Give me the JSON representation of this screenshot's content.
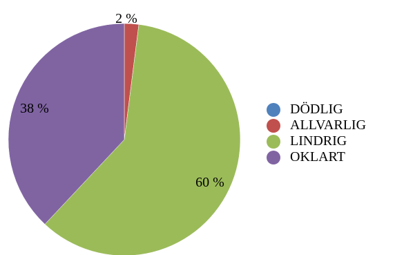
{
  "chart_data": {
    "type": "pie",
    "categories": [
      "DÖDLIG",
      "ALLVARLIG",
      "LINDRIG",
      "OKLART"
    ],
    "values": [
      0,
      2,
      60,
      38
    ],
    "value_labels": [
      "",
      "2 %",
      "60 %",
      "38 %"
    ],
    "colors": [
      "#4f81bd",
      "#c0504d",
      "#9bbb59",
      "#8064a2"
    ],
    "title": "",
    "legend_position": "right"
  }
}
